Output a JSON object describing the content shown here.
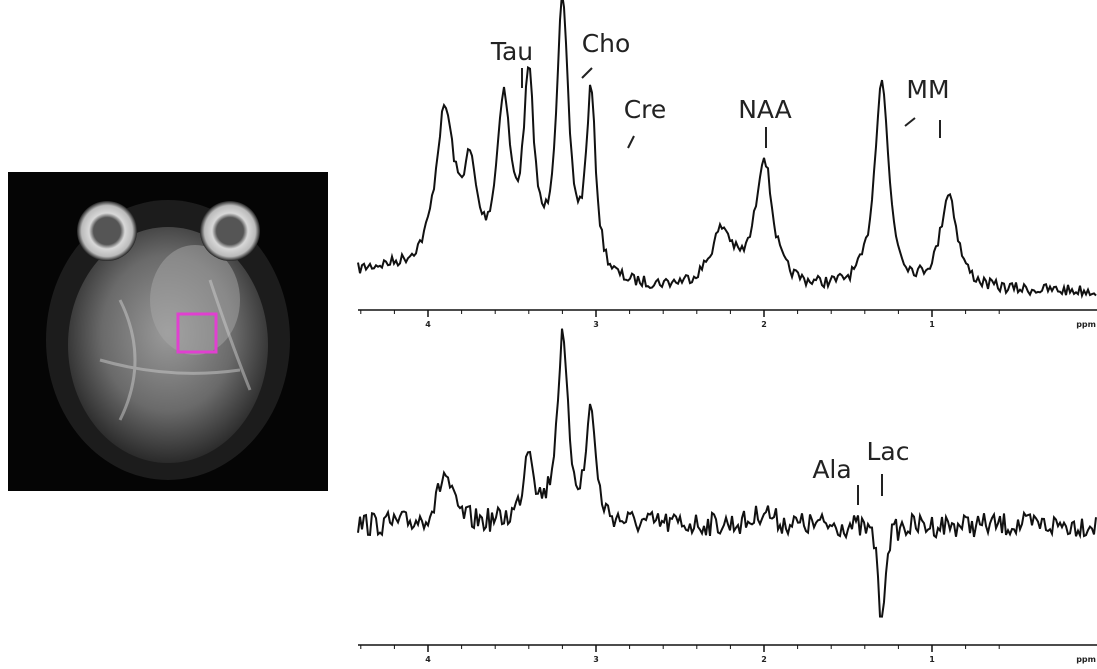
{
  "spectra": [
    {
      "labels": [
        "Tau",
        "Cho",
        "Cre",
        "NAA",
        "MM"
      ],
      "axis_ticks": [
        "4",
        "3",
        "2",
        "1"
      ],
      "axis_unit": "ppm"
    },
    {
      "labels": [
        "Ala",
        "Lac"
      ],
      "axis_ticks": [
        "4",
        "3",
        "2",
        "1"
      ],
      "axis_unit": "ppm"
    }
  ]
}
